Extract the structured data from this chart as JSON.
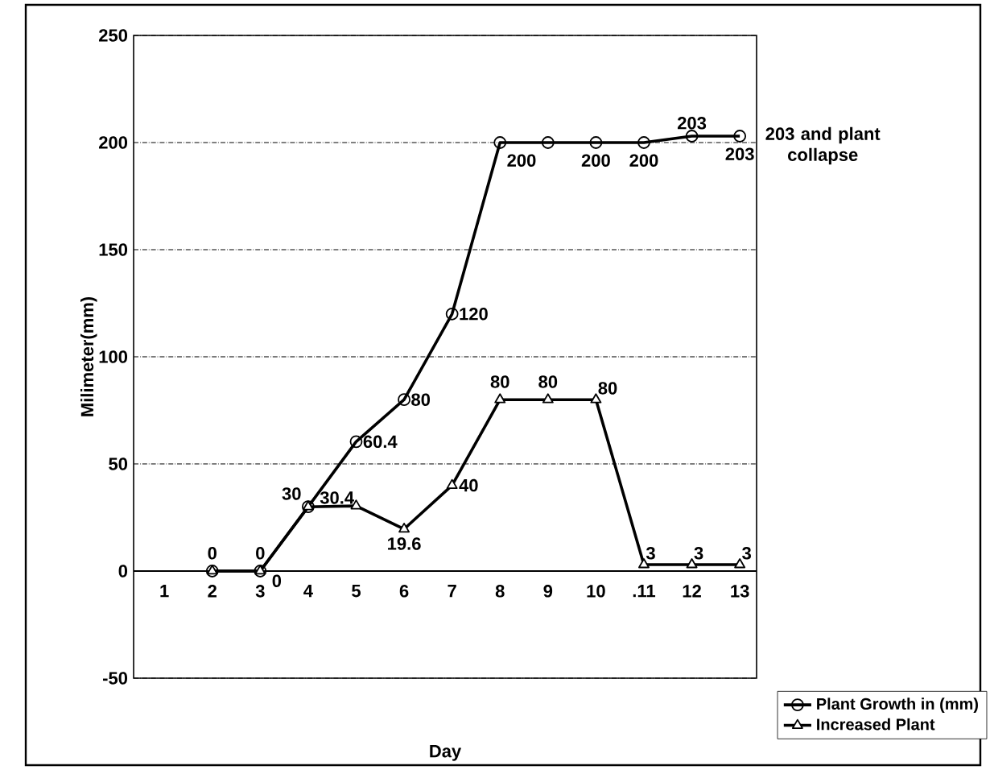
{
  "chart_data": {
    "type": "line",
    "xlabel": "Day",
    "ylabel": "Milimeter(mm)",
    "categories": [
      "1",
      "2",
      "3",
      "4",
      "5",
      "6",
      "7",
      "8",
      "9",
      "10",
      ".11",
      "12",
      "13"
    ],
    "series": [
      {
        "name": "Plant Growth in (mm)",
        "color": "#000000",
        "marker": "circle",
        "values": [
          null,
          0,
          0,
          30,
          60.4,
          80,
          120,
          200,
          200,
          200,
          200,
          203,
          203
        ],
        "value_labels": [
          null,
          "0",
          "0",
          "30",
          "60.4",
          "80",
          "120",
          "200",
          null,
          "200",
          "200",
          "203",
          "203"
        ]
      },
      {
        "name": "Increased Plant",
        "color": "#000000",
        "marker": "triangle",
        "values": [
          null,
          0,
          0,
          30,
          30.4,
          19.6,
          40,
          80,
          80,
          80,
          3,
          3,
          3
        ],
        "value_labels": [
          null,
          null,
          "0",
          null,
          "30.4",
          "19.6",
          "40",
          "80",
          "80",
          "80",
          "3",
          "3",
          "3"
        ]
      }
    ],
    "annotations": [
      {
        "text": "203 and plant collapse",
        "x": "13",
        "y": 203
      }
    ],
    "ylim": [
      -50,
      250
    ],
    "yticks": [
      -50,
      0,
      50,
      100,
      150,
      200,
      250
    ],
    "grid": "y",
    "legend": "bottom right",
    "line_style": "solid"
  }
}
